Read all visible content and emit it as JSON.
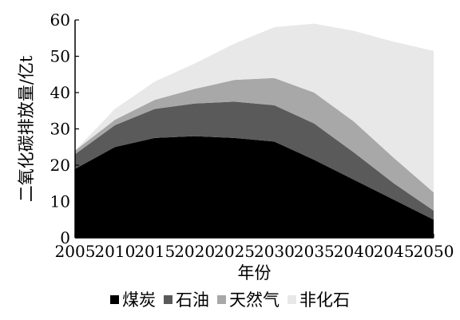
{
  "chart_data": {
    "type": "area",
    "stacked": true,
    "x": [
      2005,
      2010,
      2015,
      2020,
      2025,
      2030,
      2035,
      2040,
      2045,
      2050
    ],
    "series": [
      {
        "name": "煤炭",
        "color": "#000000",
        "values": [
          19,
          25,
          27.5,
          28,
          27.5,
          26.5,
          21.5,
          16,
          10.5,
          5
        ]
      },
      {
        "name": "石油",
        "color": "#5a5a5a",
        "values": [
          4,
          6,
          8,
          9,
          10,
          10,
          10,
          7.5,
          4.5,
          2.5
        ]
      },
      {
        "name": "天然气",
        "color": "#a8a8a8",
        "values": [
          1,
          1.5,
          2.5,
          4,
          6,
          7.5,
          8.5,
          8.5,
          7,
          5
        ]
      },
      {
        "name": "非化石",
        "color": "#e8e8e8",
        "values": [
          0,
          3,
          5,
          7,
          10,
          14,
          19,
          25,
          32,
          39
        ]
      }
    ],
    "xlabel": "年份",
    "ylabel": "二氧化碳排放量/亿t",
    "xlim": [
      2005,
      2050
    ],
    "ylim": [
      0,
      60
    ],
    "yticks": [
      0,
      10,
      20,
      30,
      40,
      50,
      60
    ],
    "xticks": [
      2005,
      2010,
      2015,
      2020,
      2025,
      2030,
      2035,
      2040,
      2045,
      2050
    ],
    "grid": false,
    "legend_position": "bottom"
  }
}
